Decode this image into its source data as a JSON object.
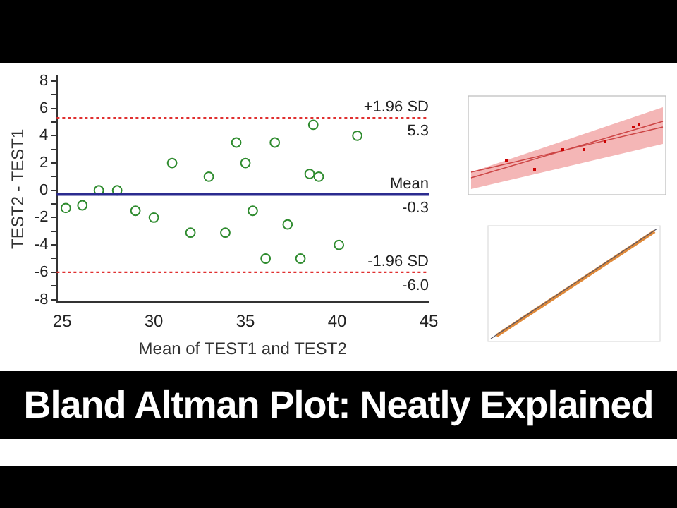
{
  "chart_data": {
    "type": "scatter",
    "title": "Bland Altman Plot: Neatly Explained",
    "xlabel": "Mean of TEST1 and TEST2",
    "ylabel": "TEST2 - TEST1",
    "x": [
      25.2,
      26.1,
      27,
      28,
      29,
      30,
      31,
      32,
      33,
      33.9,
      34.5,
      35,
      35.4,
      36.1,
      36.6,
      37.3,
      38,
      38.5,
      38.7,
      39,
      40.1,
      41.1
    ],
    "series": [
      {
        "color": "#2e8b2e",
        "values": [
          -1.3,
          -1.1,
          0,
          0,
          -1.5,
          -2,
          2,
          -3.1,
          1,
          -3.1,
          3.5,
          2,
          -1.5,
          -5,
          3.5,
          -2.5,
          -5,
          1.2,
          4.8,
          1,
          -4,
          4
        ]
      }
    ],
    "marker": "circle",
    "xlim": [
      24.7,
      45
    ],
    "xticks": [
      25,
      30,
      35,
      40,
      45
    ],
    "ylim": [
      -8.2,
      8.4
    ],
    "yticks": [
      -8,
      {
        "value": -7,
        "label": null
      },
      -6,
      {
        "value": -5,
        "label": null
      },
      -4,
      {
        "value": -3,
        "label": null
      },
      -2,
      {
        "value": -1,
        "label": null
      },
      0,
      {
        "value": 1,
        "label": null
      },
      2,
      {
        "value": 3,
        "label": null
      },
      4,
      {
        "value": 5,
        "label": null
      },
      6,
      {
        "value": 7,
        "label": null
      },
      8
    ],
    "ref_lines": [
      {
        "axis": "y",
        "value": 5.3,
        "label": "+1.96 SD",
        "color": "#e03030",
        "line_style": "dotted"
      },
      {
        "axis": "y",
        "value": -0.3,
        "label": "Mean",
        "color": "#2b2b8f",
        "line_style": "solid"
      },
      {
        "axis": "y",
        "value": -6,
        "label": "-1.96 SD",
        "color": "#e03030",
        "line_style": "dotted"
      }
    ],
    "annotations": [
      {
        "text": "5.3",
        "y": 5.3
      },
      {
        "text": "-0.3",
        "y": -0.3
      },
      {
        "text": "-6.0",
        "y": -6
      }
    ],
    "grid": false,
    "legend": false
  }
}
